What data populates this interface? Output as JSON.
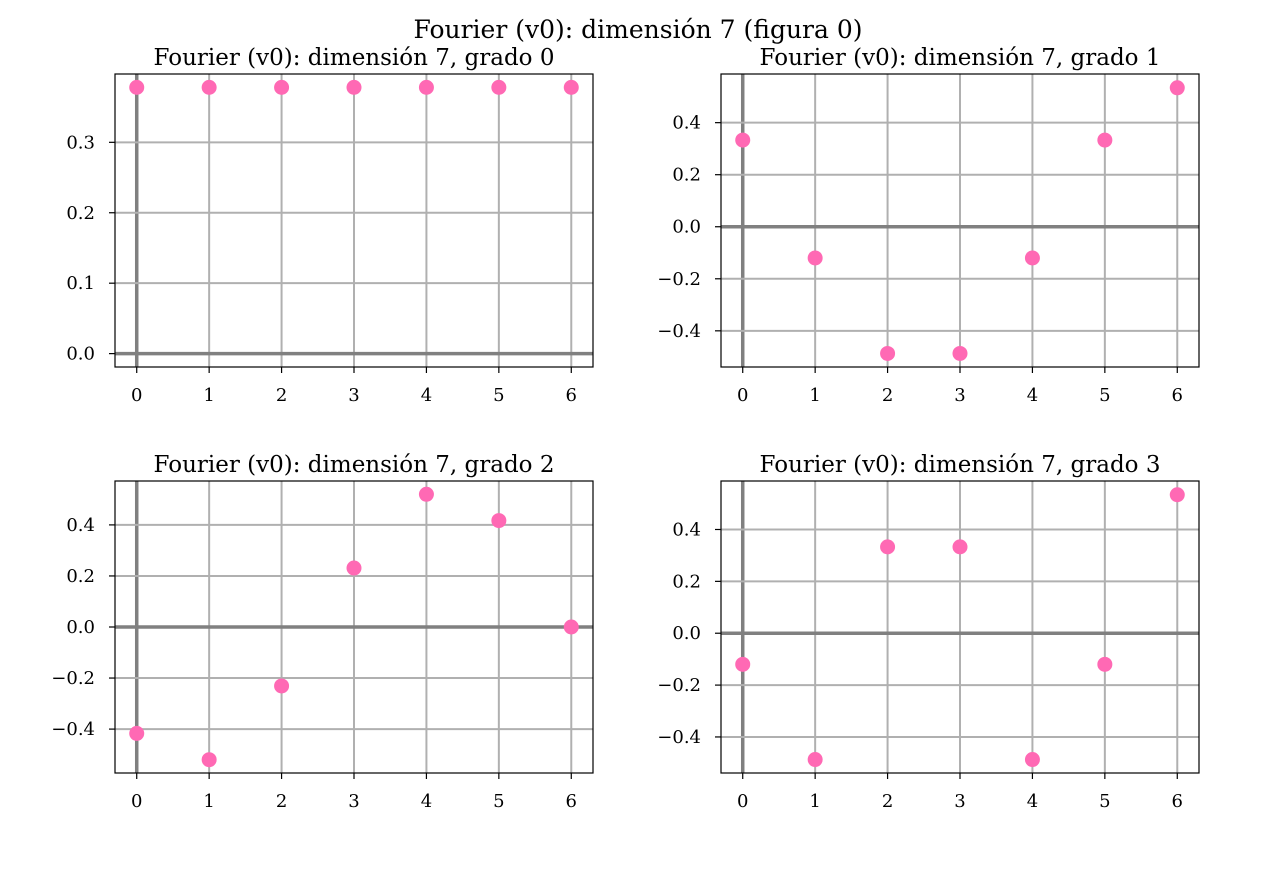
{
  "figure": {
    "suptitle": "Fourier (v0): dimensión 7 (figura 0)",
    "point_color": "#ff69b4",
    "grid_color": "#b0b0b0",
    "zero_line_color": "#808080"
  },
  "chart_data": [
    {
      "type": "scatter",
      "title": "Fourier (v0): dimensión 7, grado 0",
      "x": [
        0,
        1,
        2,
        3,
        4,
        5,
        6
      ],
      "y": [
        0.378,
        0.378,
        0.378,
        0.378,
        0.378,
        0.378,
        0.378
      ],
      "xlim": [
        -0.3,
        6.3
      ],
      "ylim": [
        -0.019,
        0.397
      ],
      "xticks": [
        0,
        1,
        2,
        3,
        4,
        5,
        6
      ],
      "xtick_labels": [
        "0",
        "1",
        "2",
        "3",
        "4",
        "5",
        "6"
      ],
      "yticks": [
        0.0,
        0.1,
        0.2,
        0.3
      ],
      "ytick_labels": [
        "0.0",
        "0.1",
        "0.2",
        "0.3"
      ],
      "grid": true
    },
    {
      "type": "scatter",
      "title": "Fourier (v0): dimensión 7, grado 1",
      "x": [
        0,
        1,
        2,
        3,
        4,
        5,
        6
      ],
      "y": [
        0.333,
        -0.12,
        -0.487,
        -0.487,
        -0.12,
        0.333,
        0.534
      ],
      "xlim": [
        -0.3,
        6.3
      ],
      "ylim": [
        -0.539,
        0.587
      ],
      "xticks": [
        0,
        1,
        2,
        3,
        4,
        5,
        6
      ],
      "xtick_labels": [
        "0",
        "1",
        "2",
        "3",
        "4",
        "5",
        "6"
      ],
      "yticks": [
        -0.4,
        -0.2,
        0.0,
        0.2,
        0.4
      ],
      "ytick_labels": [
        "−0.4",
        "−0.2",
        "0.0",
        "0.2",
        "0.4"
      ],
      "grid": true
    },
    {
      "type": "scatter",
      "title": "Fourier (v0): dimensión 7, grado 2",
      "x": [
        0,
        1,
        2,
        3,
        4,
        5,
        6
      ],
      "y": [
        -0.417,
        -0.52,
        -0.231,
        0.231,
        0.52,
        0.417,
        0.0
      ],
      "xlim": [
        -0.3,
        6.3
      ],
      "ylim": [
        -0.572,
        0.572
      ],
      "xticks": [
        0,
        1,
        2,
        3,
        4,
        5,
        6
      ],
      "xtick_labels": [
        "0",
        "1",
        "2",
        "3",
        "4",
        "5",
        "6"
      ],
      "yticks": [
        -0.4,
        -0.2,
        0.0,
        0.2,
        0.4
      ],
      "ytick_labels": [
        "−0.4",
        "−0.2",
        "0.0",
        "0.2",
        "0.4"
      ],
      "grid": true
    },
    {
      "type": "scatter",
      "title": "Fourier (v0): dimensión 7, grado 3",
      "x": [
        0,
        1,
        2,
        3,
        4,
        5,
        6
      ],
      "y": [
        -0.12,
        -0.487,
        0.333,
        0.333,
        -0.487,
        -0.12,
        0.534
      ],
      "xlim": [
        -0.3,
        6.3
      ],
      "ylim": [
        -0.539,
        0.587
      ],
      "xticks": [
        0,
        1,
        2,
        3,
        4,
        5,
        6
      ],
      "xtick_labels": [
        "0",
        "1",
        "2",
        "3",
        "4",
        "5",
        "6"
      ],
      "yticks": [
        -0.4,
        -0.2,
        0.0,
        0.2,
        0.4
      ],
      "ytick_labels": [
        "−0.4",
        "−0.2",
        "0.0",
        "0.2",
        "0.4"
      ],
      "grid": true
    }
  ]
}
